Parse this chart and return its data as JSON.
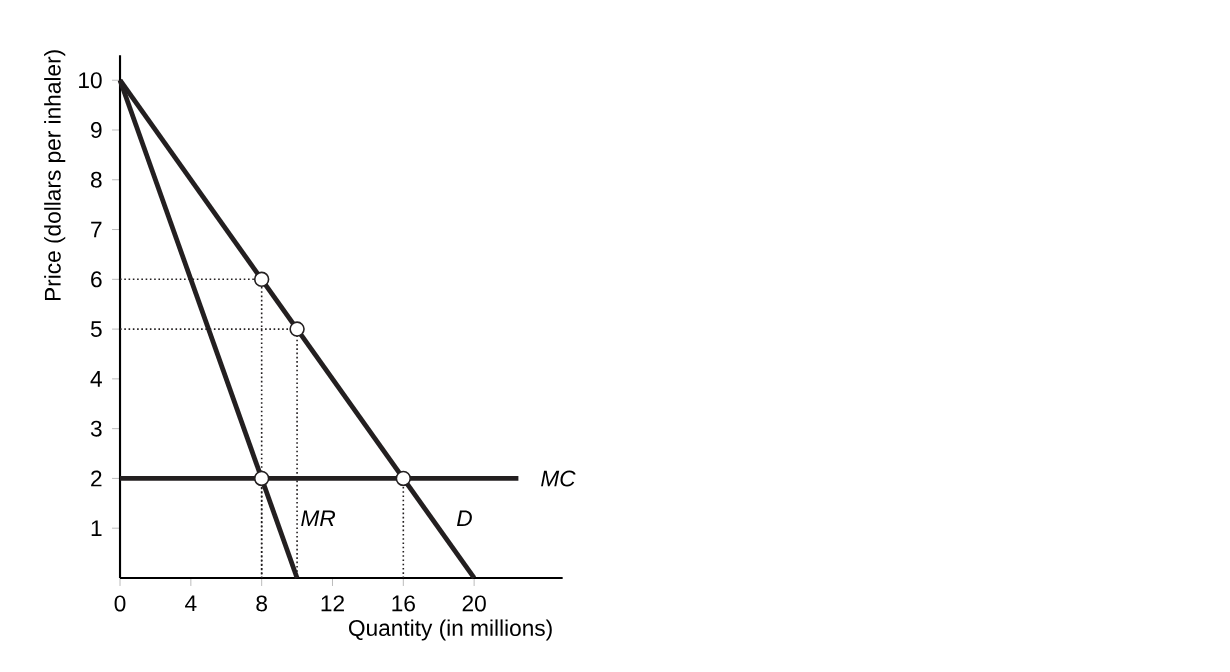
{
  "chart_data": {
    "type": "line",
    "xlabel": "Quantity (in millions)",
    "ylabel": "Price (dollars per inhaler)",
    "xlim": [
      0,
      25
    ],
    "ylim": [
      0,
      10.5
    ],
    "xticks": [
      0,
      4,
      8,
      12,
      16,
      20
    ],
    "yticks": [
      1,
      2,
      3,
      4,
      5,
      6,
      7,
      8,
      9,
      10
    ],
    "series": [
      {
        "color": "#231f20",
        "line_style": "dotted",
        "x": [
          0,
          8,
          8
        ],
        "values": [
          6,
          6,
          0
        ]
      },
      {
        "color": "#231f20",
        "line_style": "dotted",
        "x": [
          0,
          10,
          10
        ],
        "values": [
          5,
          5,
          0
        ]
      },
      {
        "color": "#231f20",
        "line_style": "dotted",
        "x": [
          8,
          8
        ],
        "values": [
          2,
          0
        ]
      },
      {
        "color": "#231f20",
        "line_style": "dotted",
        "x": [
          16,
          16
        ],
        "values": [
          2,
          0
        ]
      },
      {
        "name": "*D*",
        "color": "#231f20",
        "x": [
          0,
          20
        ],
        "values": [
          10,
          0
        ]
      },
      {
        "name": "*MR*",
        "color": "#231f20",
        "x": [
          0,
          10
        ],
        "values": [
          10,
          0
        ]
      },
      {
        "name": "*MC*",
        "color": "#231f20",
        "x": [
          0,
          22.5
        ],
        "values": [
          2,
          2
        ]
      },
      {
        "type": "scatter",
        "marker": "circle",
        "color": "#231f20",
        "x": [
          8,
          10,
          8,
          16
        ],
        "values": [
          6,
          5,
          2,
          2
        ]
      }
    ]
  }
}
